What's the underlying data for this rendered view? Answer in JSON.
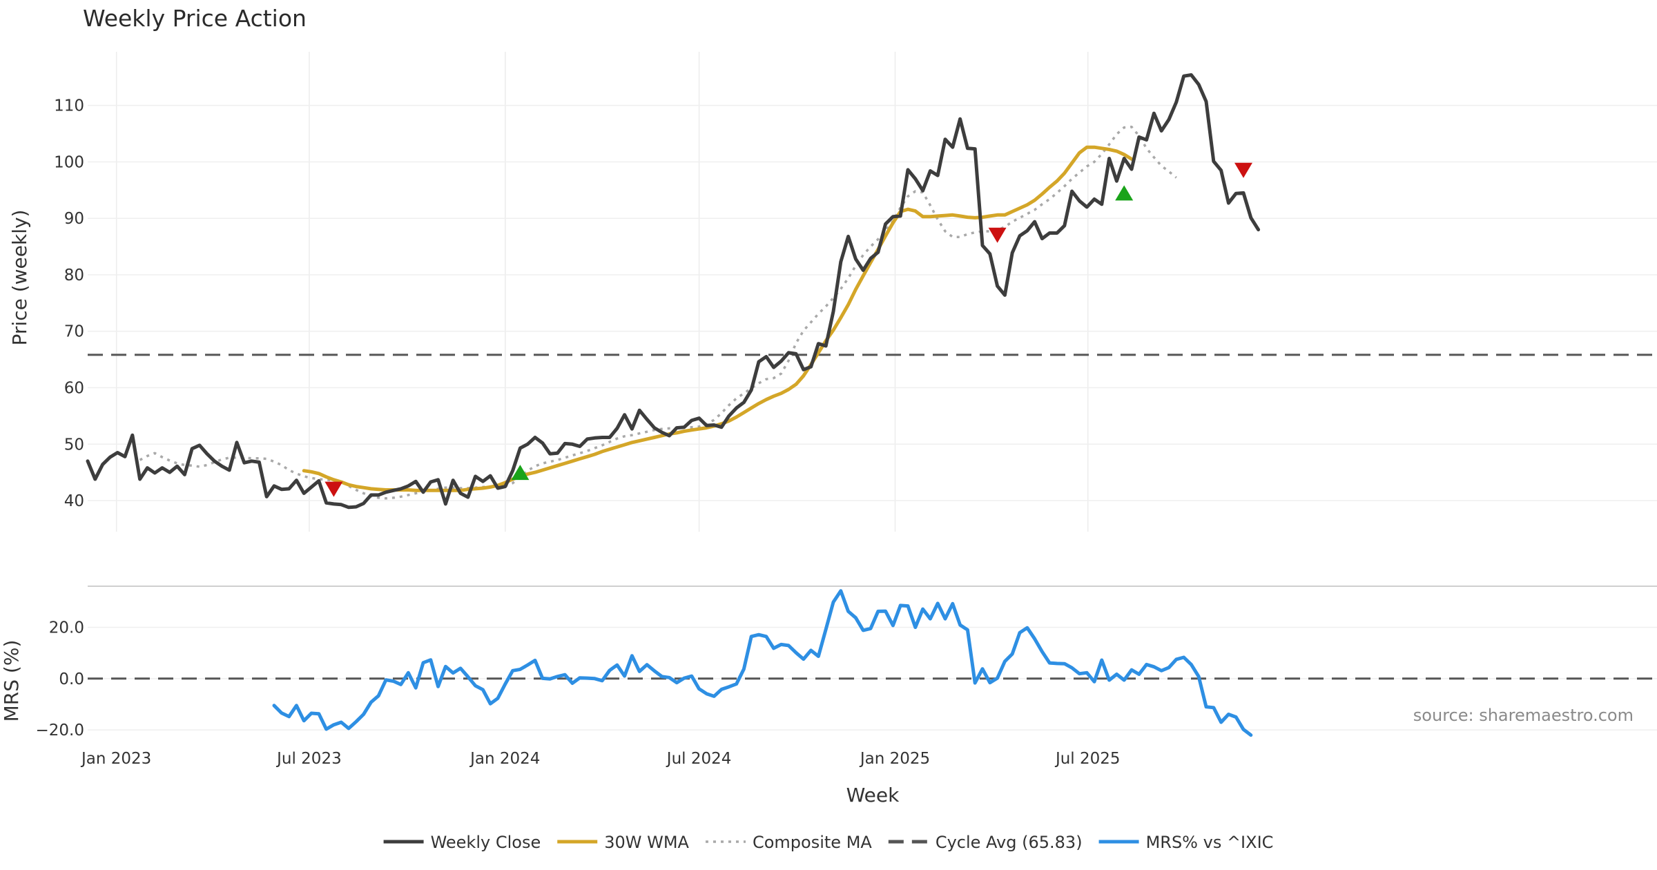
{
  "chart_data": {
    "type": "line",
    "title": "Weekly Price Action",
    "xlabel": "Week",
    "x_ticks": [
      "Jan 2023",
      "Jul 2023",
      "Jan 2024",
      "Jul 2024",
      "Jan 2025",
      "Jul 2025"
    ],
    "start_date": "2022-12-05",
    "week_count": 157,
    "source_note": "source: sharemaestro.com",
    "panels": [
      {
        "id": "price",
        "ylabel": "Price (weekly)",
        "ylim": [
          34.5,
          119.5
        ],
        "yticks": [
          40,
          50,
          60,
          70,
          80,
          90,
          100,
          110
        ],
        "ytick_labels": [
          "40",
          "50",
          "60",
          "70",
          "80",
          "90",
          "100",
          "110"
        ]
      },
      {
        "id": "mrs",
        "ylabel": "MRS (%)",
        "ylim": [
          -24,
          36
        ],
        "yticks": [
          -20,
          0,
          20
        ],
        "ytick_labels": [
          "−20.0",
          "0.0",
          "20.0"
        ]
      }
    ],
    "series": [
      {
        "name": "Weekly Close",
        "panel": "price",
        "color": "#3d3d3d",
        "style": "solid",
        "start_index": 0,
        "values": [
          47.0,
          43.8,
          46.4,
          47.7,
          48.5,
          47.8,
          51.6,
          43.8,
          45.8,
          44.9,
          45.8,
          45.0,
          46.1,
          44.6,
          49.2,
          49.8,
          48.3,
          47.0,
          46.1,
          45.4,
          50.3,
          46.7,
          47.0,
          46.8,
          40.7,
          42.6,
          42.0,
          42.1,
          43.6,
          41.3,
          42.4,
          43.5,
          39.6,
          39.4,
          39.3,
          38.8,
          38.9,
          39.5,
          41.0,
          41.0,
          41.5,
          41.8,
          42.1,
          42.6,
          43.4,
          41.5,
          43.3,
          43.7,
          39.4,
          43.6,
          41.3,
          40.6,
          44.3,
          43.4,
          44.4,
          42.2,
          42.5,
          45.3,
          49.3,
          50.0,
          51.2,
          50.2,
          48.3,
          48.4,
          50.1,
          50.0,
          49.6,
          50.9,
          51.1,
          51.2,
          51.2,
          52.8,
          55.2,
          52.7,
          56.0,
          54.4,
          52.9,
          52.1,
          51.5,
          52.9,
          53.0,
          54.2,
          54.6,
          53.3,
          53.4,
          53.0,
          55.0,
          56.4,
          57.4,
          59.6,
          64.6,
          65.5,
          63.6,
          64.7,
          66.2,
          66.0,
          63.2,
          63.7,
          67.8,
          67.4,
          73.5,
          82.3,
          86.8,
          82.8,
          80.8,
          82.9,
          84.0,
          89.0,
          90.3,
          90.4,
          98.6,
          97.0,
          94.9,
          98.4,
          97.6,
          104.0,
          102.6,
          107.6,
          102.4,
          102.3,
          85.2,
          83.7,
          78.0,
          76.4,
          83.9,
          86.9,
          87.8,
          89.4,
          86.4,
          87.4,
          87.4,
          88.7,
          94.8,
          93.1,
          92.0,
          93.4,
          92.5,
          100.6,
          96.6,
          100.6,
          98.7,
          104.4,
          103.9,
          108.6,
          105.5,
          107.5,
          110.6,
          115.2,
          115.4,
          113.7,
          110.7,
          100.1,
          98.5,
          92.7,
          94.4,
          94.5,
          90.1,
          88.0
        ]
      },
      {
        "name": "Composite MA",
        "panel": "price",
        "color": "#a9a9a9",
        "style": "dotted",
        "start_index": 7,
        "values": [
          47.2,
          47.9,
          48.4,
          47.7,
          47.1,
          46.6,
          46.3,
          46.2,
          46.0,
          46.3,
          46.8,
          47.3,
          47.6,
          47.6,
          47.6,
          47.5,
          47.5,
          47.4,
          46.9,
          46.3,
          45.4,
          44.8,
          44.3,
          44.0,
          43.8,
          43.7,
          43.6,
          43.3,
          42.6,
          41.9,
          41.3,
          40.8,
          40.5,
          40.4,
          40.5,
          40.7,
          41.0,
          41.3,
          41.6,
          41.8,
          42.1,
          42.3,
          42.3,
          42.2,
          42.2,
          42.3,
          42.4,
          42.5,
          42.7,
          42.6,
          43.1,
          44.2,
          45.3,
          46.1,
          46.6,
          46.9,
          47.2,
          47.6,
          48.0,
          48.4,
          48.8,
          49.3,
          49.8,
          50.4,
          51.0,
          51.4,
          51.6,
          51.9,
          52.2,
          52.5,
          52.7,
          52.8,
          52.9,
          53.0,
          53.0,
          53.1,
          53.5,
          54.3,
          55.5,
          56.9,
          58.1,
          59.0,
          59.9,
          60.8,
          61.5,
          61.7,
          62.5,
          64.8,
          67.9,
          70.1,
          71.6,
          73.1,
          74.4,
          75.9,
          77.5,
          79.4,
          81.6,
          83.5,
          85.0,
          86.3,
          87.8,
          89.5,
          91.9,
          93.9,
          94.8,
          94.6,
          92.3,
          89.8,
          87.7,
          86.7,
          86.7,
          87.2,
          87.5,
          87.7,
          87.7,
          87.9,
          88.5,
          89.4,
          90.1,
          90.8,
          91.5,
          92.5,
          93.4,
          94.5,
          95.7,
          97.0,
          98.1,
          99.2,
          100.0,
          101.4,
          103.1,
          104.9,
          106.1,
          106.2,
          104.6,
          102.4,
          100.8,
          99.3,
          98.3,
          97.2
        ]
      },
      {
        "name": "30W WMA",
        "panel": "price",
        "color": "#d4a628",
        "style": "solid",
        "start_index": 29,
        "values": [
          45.3,
          45.1,
          44.8,
          44.2,
          43.7,
          43.3,
          42.8,
          42.5,
          42.3,
          42.1,
          42.0,
          41.9,
          41.9,
          41.9,
          41.9,
          41.8,
          41.8,
          41.8,
          41.8,
          41.8,
          41.8,
          41.8,
          42.0,
          42.1,
          42.2,
          42.4,
          42.7,
          43.2,
          43.8,
          44.3,
          44.7,
          45.0,
          45.4,
          45.8,
          46.2,
          46.6,
          47.0,
          47.4,
          47.8,
          48.2,
          48.7,
          49.1,
          49.5,
          49.9,
          50.3,
          50.6,
          50.9,
          51.2,
          51.5,
          51.8,
          52.0,
          52.3,
          52.5,
          52.7,
          52.9,
          53.2,
          53.6,
          54.1,
          54.8,
          55.6,
          56.4,
          57.2,
          57.9,
          58.5,
          59.0,
          59.7,
          60.6,
          62.1,
          64.1,
          66.2,
          68.3,
          70.2,
          72.4,
          74.7,
          77.4,
          79.8,
          82.2,
          84.5,
          86.9,
          89.2,
          91.2,
          91.6,
          91.3,
          90.3,
          90.3,
          90.4,
          90.5,
          90.6,
          90.4,
          90.2,
          90.1,
          90.2,
          90.4,
          90.6,
          90.6,
          91.2,
          91.8,
          92.4,
          93.2,
          94.3,
          95.5,
          96.6,
          98.0,
          99.8,
          101.6,
          102.6,
          102.6,
          102.4,
          102.2,
          101.9,
          101.3,
          100.5
        ]
      },
      {
        "name": "MRS% vs ^IXIC",
        "panel": "mrs",
        "color": "#2e8fe3",
        "style": "solid",
        "start_index": 25,
        "values": [
          -10.5,
          -13.4,
          -14.8,
          -10.5,
          -16.4,
          -13.5,
          -13.7,
          -19.7,
          -18.0,
          -17.0,
          -19.4,
          -16.8,
          -13.9,
          -9.2,
          -6.7,
          -0.5,
          -1.0,
          -2.3,
          2.3,
          -3.6,
          6.2,
          7.3,
          -3.1,
          4.7,
          2.2,
          4.0,
          0.7,
          -2.8,
          -4.3,
          -9.8,
          -7.7,
          -2.1,
          3.1,
          3.6,
          5.3,
          7.1,
          0.1,
          -0.1,
          0.8,
          1.5,
          -1.8,
          0.3,
          0.2,
          0.0,
          -0.8,
          3.2,
          5.3,
          1.0,
          8.9,
          2.8,
          5.4,
          3.0,
          0.8,
          0.4,
          -1.6,
          0.2,
          1.0,
          -4.0,
          -5.9,
          -6.9,
          -4.2,
          -3.2,
          -2.1,
          3.7,
          16.4,
          17.1,
          16.4,
          11.8,
          13.3,
          12.9,
          10.1,
          7.6,
          11.0,
          8.7,
          19.2,
          29.8,
          34.2,
          26.2,
          23.7,
          18.8,
          19.5,
          26.2,
          26.3,
          20.7,
          28.5,
          28.3,
          20.0,
          27.1,
          23.3,
          29.3,
          23.3,
          29.2,
          20.9,
          19.0,
          -1.7,
          3.8,
          -1.6,
          0.2,
          6.7,
          9.6,
          17.9,
          19.8,
          15.5,
          10.5,
          6.1,
          5.9,
          5.8,
          4.2,
          1.9,
          2.3,
          -1.2,
          7.2,
          -0.6,
          1.7,
          -0.6,
          3.4,
          1.7,
          5.5,
          4.6,
          3.1,
          4.3,
          7.5,
          8.3,
          5.5,
          0.8,
          -11.0,
          -11.3,
          -17.0,
          -13.9,
          -15.0,
          -19.8,
          -22.0
        ]
      }
    ],
    "reference_lines": [
      {
        "name": "Cycle Avg (65.83)",
        "panel": "price",
        "y": 65.83,
        "color": "#555555",
        "style": "dashed"
      },
      {
        "name": "MRS zero",
        "panel": "mrs",
        "y": 0,
        "color": "#555555",
        "style": "dashed"
      }
    ],
    "markers": [
      {
        "type": "sell",
        "week_index": 33,
        "value": 42.0,
        "color": "#cc1111"
      },
      {
        "type": "buy",
        "week_index": 58,
        "value": 45.0,
        "color": "#1aa31a"
      },
      {
        "type": "sell",
        "week_index": 122,
        "value": 87.0,
        "color": "#cc1111"
      },
      {
        "type": "buy",
        "week_index": 139,
        "value": 94.5,
        "color": "#1aa31a"
      },
      {
        "type": "sell",
        "week_index": 155,
        "value": 98.5,
        "color": "#cc1111"
      }
    ],
    "legend": {
      "position": "bottom-center",
      "entries": [
        {
          "label": "Weekly Close",
          "color": "#3d3d3d",
          "style": "solid"
        },
        {
          "label": "30W WMA",
          "color": "#d4a628",
          "style": "solid"
        },
        {
          "label": "Composite MA",
          "color": "#a9a9a9",
          "style": "dotted"
        },
        {
          "label": "Cycle Avg (65.83)",
          "color": "#555555",
          "style": "dashed"
        },
        {
          "label": "MRS% vs ^IXIC",
          "color": "#2e8fe3",
          "style": "solid"
        }
      ]
    }
  }
}
